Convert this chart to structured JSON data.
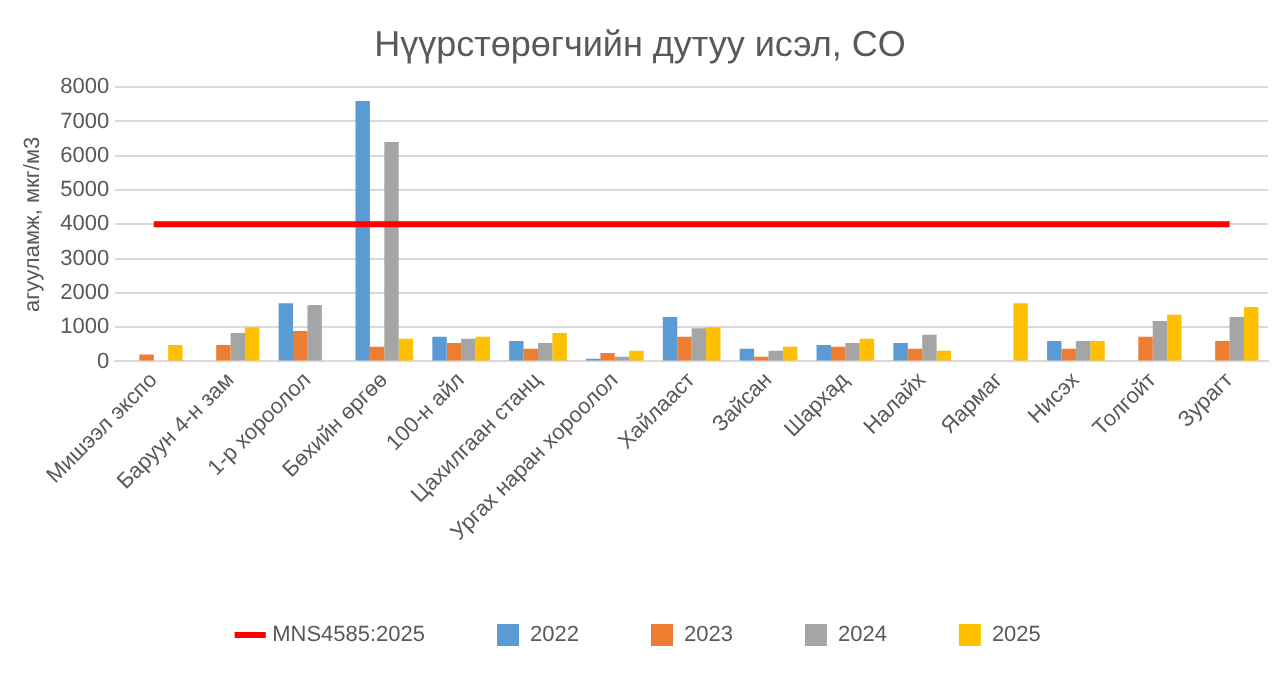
{
  "chart_data": {
    "type": "bar",
    "title": "Нүүрстөрөгчийн дутуу исэл, CO",
    "ylabel": "агууламж, мкг/м3",
    "categories": [
      "Мишээл экспо",
      "Баруун 4-н зам",
      "1-р хороолол",
      "Бөхийн өргөө",
      "100-н айл",
      "Цахилгаан станц",
      "Ургах наран хороолол",
      "Хайлааст",
      "Зайсан",
      "Шархад",
      "Налайх",
      "Яармаг",
      "Нисэх",
      "Толгойт",
      "Зурагт"
    ],
    "series": [
      {
        "name": "2022",
        "color": "#5b9bd5",
        "values": [
          null,
          null,
          1700,
          7600,
          720,
          600,
          80,
          1300,
          370,
          480,
          540,
          null,
          600,
          null,
          null
        ]
      },
      {
        "name": "2023",
        "color": "#ed7d31",
        "values": [
          200,
          480,
          890,
          430,
          540,
          370,
          250,
          720,
          140,
          430,
          370,
          null,
          370,
          720,
          600
        ]
      },
      {
        "name": "2024",
        "color": "#a5a5a5",
        "values": [
          null,
          830,
          1650,
          6400,
          660,
          540,
          140,
          970,
          310,
          540,
          780,
          null,
          600,
          1180,
          1300
        ]
      },
      {
        "name": "2025",
        "color": "#ffc000",
        "values": [
          480,
          1000,
          null,
          660,
          720,
          830,
          310,
          1000,
          430,
          660,
          310,
          1700,
          600,
          1360,
          1590
        ]
      },
      {
        "name": "MNS4585:2025",
        "type": "line",
        "color": "#ff0000",
        "values": [
          4000,
          4000,
          4000,
          4000,
          4000,
          4000,
          4000,
          4000,
          4000,
          4000,
          4000,
          4000,
          4000,
          4000,
          4000
        ]
      }
    ],
    "ylim": [
      0,
      8000
    ],
    "yticks": [
      0,
      1000,
      2000,
      3000,
      4000,
      5000,
      6000,
      7000,
      8000
    ],
    "grid": "y",
    "legend": "bottom"
  }
}
